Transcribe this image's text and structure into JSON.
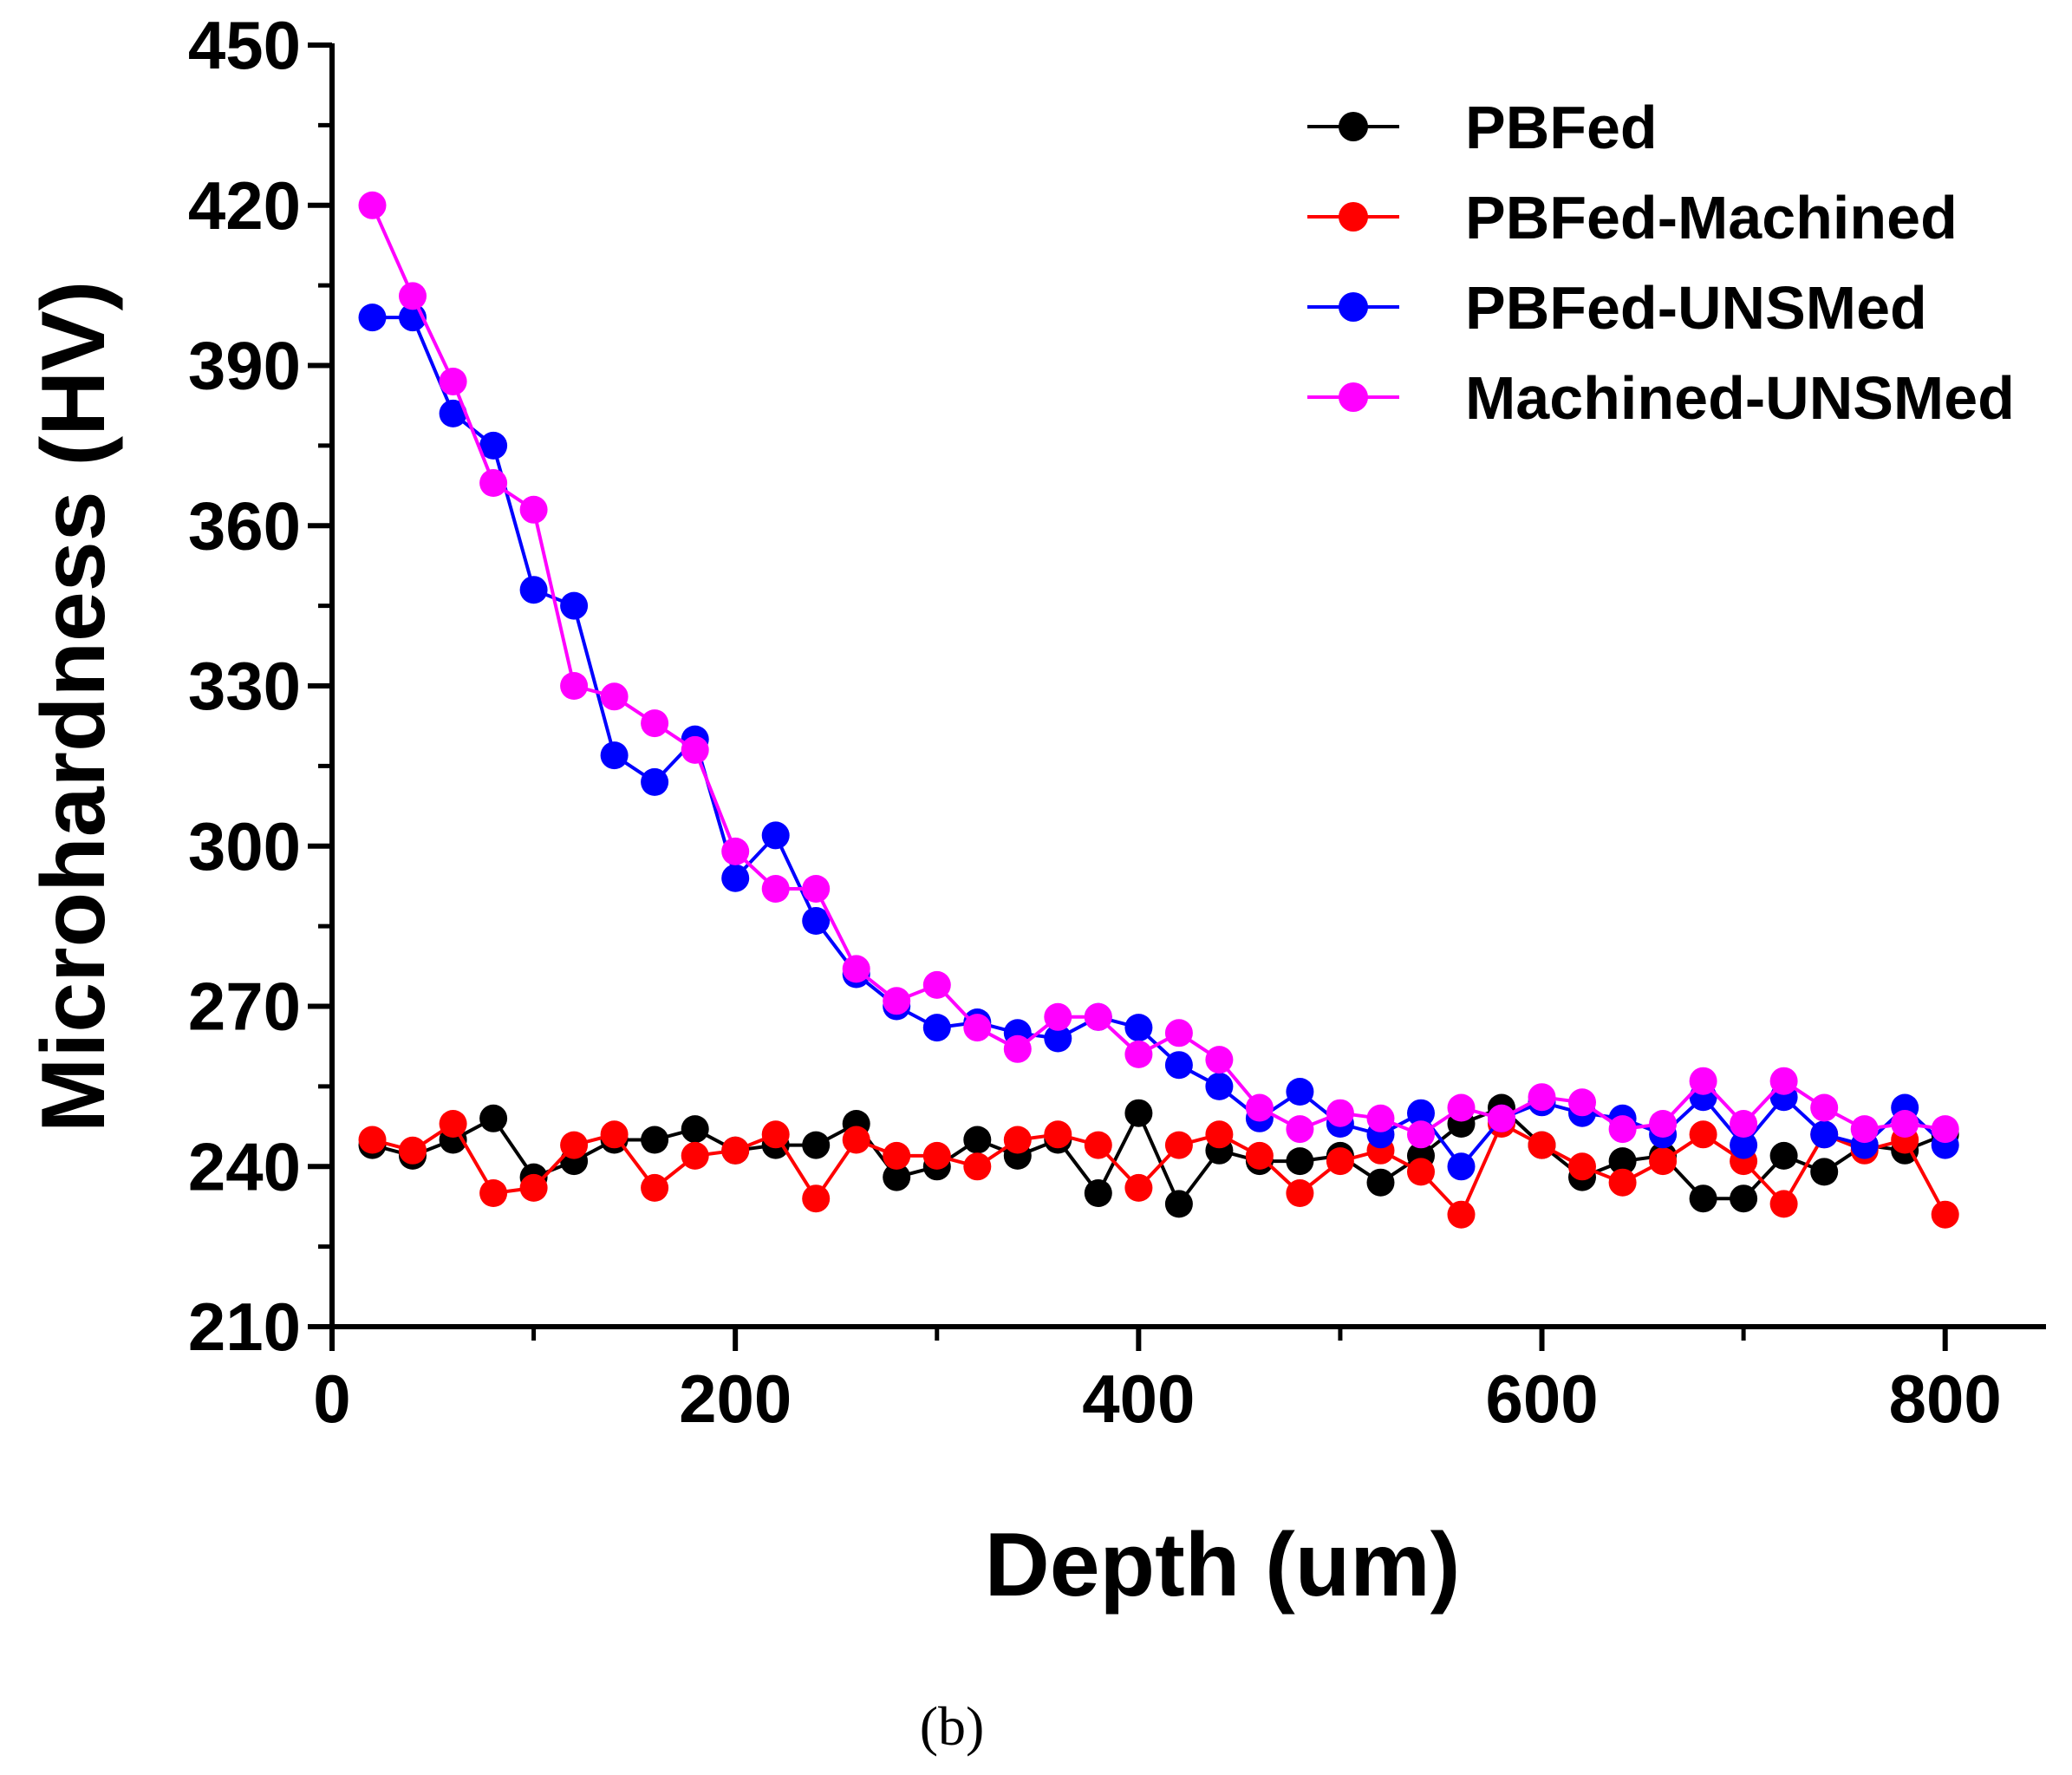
{
  "chart_data": {
    "type": "line",
    "xlabel": "Depth (um)",
    "ylabel": "Microhardness (HV)",
    "caption": "(b)",
    "xlim": [
      0,
      850
    ],
    "ylim": [
      210,
      450
    ],
    "xticks": [
      "0",
      "200",
      "400",
      "600",
      "800"
    ],
    "xtick_values": [
      0,
      200,
      400,
      600,
      800
    ],
    "yticks": [
      "210",
      "240",
      "270",
      "300",
      "330",
      "360",
      "390",
      "420",
      "450"
    ],
    "ytick_values": [
      210,
      240,
      270,
      300,
      330,
      360,
      390,
      420,
      450
    ],
    "legend_position": "top-right",
    "x": [
      20,
      40,
      60,
      80,
      100,
      120,
      140,
      160,
      180,
      200,
      220,
      240,
      260,
      280,
      300,
      320,
      340,
      360,
      380,
      400,
      420,
      440,
      460,
      480,
      500,
      520,
      540,
      560,
      580,
      600,
      620,
      640,
      660,
      680,
      700,
      720,
      740,
      760,
      780,
      800
    ],
    "series": [
      {
        "name": "PBFed",
        "color": "#000000",
        "values": [
          244,
          242,
          245,
          249,
          238,
          241,
          245,
          245,
          247,
          243,
          244,
          244,
          248,
          238,
          240,
          245,
          242,
          245,
          235,
          250,
          233,
          243,
          241,
          241,
          242,
          237,
          242,
          248,
          251,
          244,
          238,
          241,
          242,
          234,
          234,
          242,
          239,
          244,
          243,
          246
        ]
      },
      {
        "name": "PBFed-Machined",
        "color": "#ff0000",
        "values": [
          245,
          243,
          248,
          235,
          236,
          244,
          246,
          236,
          242,
          243,
          246,
          234,
          245,
          242,
          242,
          240,
          245,
          246,
          244,
          236,
          244,
          246,
          242,
          235,
          241,
          243,
          239,
          231,
          248,
          244,
          240,
          237,
          241,
          246,
          241,
          233,
          246,
          243,
          245,
          231
        ]
      },
      {
        "name": "PBFed-UNSMed",
        "color": "#0000ff",
        "values": [
          399,
          399,
          381,
          375,
          348,
          345,
          317,
          312,
          320,
          294,
          302,
          286,
          276,
          270,
          266,
          267,
          265,
          264,
          268,
          266,
          259,
          255,
          249,
          254,
          248,
          246,
          250,
          240,
          249,
          252,
          250,
          249,
          246,
          253,
          244,
          253,
          246,
          244,
          251,
          244
        ]
      },
      {
        "name": "Machined-UNSMed",
        "color": "#ff00ff",
        "values": [
          420,
          403,
          387,
          368,
          363,
          330,
          328,
          323,
          318,
          299,
          292,
          292,
          277,
          271,
          274,
          266,
          262,
          268,
          268,
          261,
          265,
          260,
          251,
          247,
          250,
          249,
          246,
          251,
          249,
          253,
          252,
          247,
          248,
          256,
          248,
          256,
          251,
          247,
          248,
          247
        ]
      }
    ]
  }
}
